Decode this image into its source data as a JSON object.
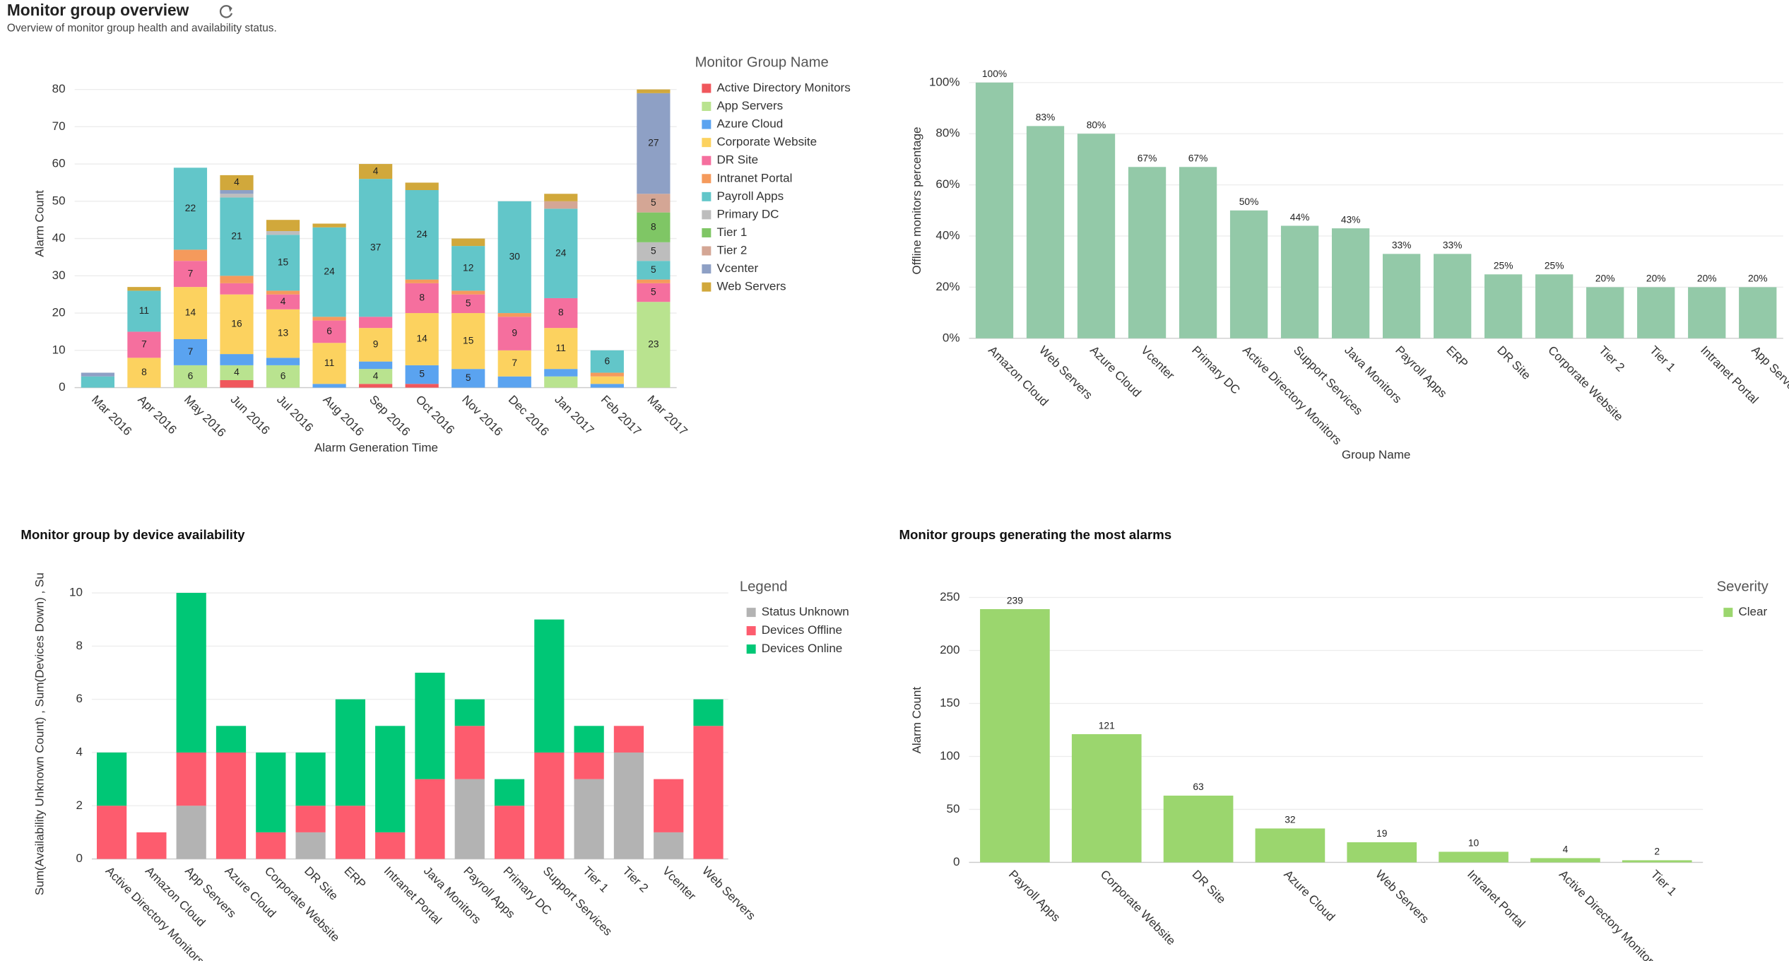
{
  "header": {
    "title": "Monitor group overview",
    "subtitle": "Overview of monitor group health and availability status."
  },
  "chart_data": [
    {
      "type": "bar",
      "stacked": true,
      "y_label": "Alarm Count",
      "x_label": "Alarm Generation Time",
      "legend_title": "Monitor Group Name",
      "categories": [
        "Mar 2016",
        "Apr 2016",
        "May 2016",
        "Jun 2016",
        "Jul 2016",
        "Aug 2016",
        "Sep 2016",
        "Oct 2016",
        "Nov 2016",
        "Dec 2016",
        "Jan 2017",
        "Feb 2017",
        "Mar 2017"
      ],
      "series": [
        {
          "name": "Active Directory Monitors",
          "color": "#f0575c",
          "values": [
            0,
            0,
            0,
            2,
            0,
            0,
            1,
            1,
            0,
            0,
            0,
            0,
            0
          ]
        },
        {
          "name": "App Servers",
          "color": "#b9e38f",
          "values": [
            0,
            0,
            6,
            4,
            6,
            0,
            4,
            0,
            0,
            0,
            3,
            0,
            23
          ]
        },
        {
          "name": "Azure Cloud",
          "color": "#5aa3f0",
          "values": [
            0,
            0,
            7,
            3,
            2,
            1,
            2,
            5,
            5,
            3,
            2,
            1,
            0
          ]
        },
        {
          "name": "Corporate Website",
          "color": "#fcd25f",
          "values": [
            0,
            8,
            14,
            16,
            13,
            11,
            9,
            14,
            15,
            7,
            11,
            2,
            0
          ]
        },
        {
          "name": "DR Site",
          "color": "#f56f9e",
          "values": [
            0,
            7,
            7,
            3,
            4,
            6,
            3,
            8,
            5,
            9,
            8,
            0,
            5
          ]
        },
        {
          "name": "Intranet Portal",
          "color": "#f59a5c",
          "values": [
            0,
            0,
            3,
            2,
            1,
            1,
            0,
            1,
            1,
            1,
            0,
            1,
            1
          ]
        },
        {
          "name": "Payroll Apps",
          "color": "#62c6c9",
          "values": [
            3,
            11,
            22,
            21,
            15,
            24,
            37,
            24,
            12,
            30,
            24,
            6,
            5
          ]
        },
        {
          "name": "Primary DC",
          "color": "#bdbdbd",
          "values": [
            0,
            0,
            0,
            1,
            1,
            0,
            0,
            0,
            0,
            0,
            0,
            0,
            5
          ]
        },
        {
          "name": "Tier 1",
          "color": "#7fc665",
          "values": [
            0,
            0,
            0,
            0,
            0,
            0,
            0,
            0,
            0,
            0,
            0,
            0,
            8
          ]
        },
        {
          "name": "Tier 2",
          "color": "#d4a695",
          "values": [
            0,
            0,
            0,
            0,
            0,
            0,
            0,
            0,
            0,
            0,
            2,
            0,
            5
          ]
        },
        {
          "name": "Vcenter",
          "color": "#8ea0c5",
          "values": [
            1,
            0,
            0,
            1,
            0,
            0,
            0,
            0,
            0,
            0,
            0,
            0,
            27
          ]
        },
        {
          "name": "Web Servers",
          "color": "#d1a83b",
          "values": [
            0,
            1,
            0,
            4,
            3,
            1,
            4,
            2,
            2,
            0,
            2,
            0,
            1
          ]
        }
      ],
      "ylim": [
        0,
        80
      ],
      "yticks": [
        0,
        10,
        20,
        30,
        40,
        50,
        60,
        70,
        80
      ],
      "grid": true
    },
    {
      "type": "bar",
      "y_label": "Offline monitors percentage",
      "x_label": "Group Name",
      "color": "#93c9a8",
      "categories": [
        "Amazon Cloud",
        "Web Servers",
        "Azure Cloud",
        "Vcenter",
        "Primary DC",
        "Active Directory Monitors",
        "Support Services",
        "Java Monitors",
        "Payroll Apps",
        "ERP",
        "DR Site",
        "Corporate Website",
        "Tier 2",
        "Tier 1",
        "Intranet Portal",
        "App Servers"
      ],
      "values": [
        100,
        83,
        80,
        67,
        67,
        50,
        44,
        43,
        33,
        33,
        25,
        25,
        20,
        20,
        20,
        20
      ],
      "value_labels": [
        "100%",
        "83%",
        "80%",
        "67%",
        "67%",
        "50%",
        "44%",
        "43%",
        "33%",
        "33%",
        "25%",
        "25%",
        "20%",
        "20%",
        "20%",
        "20%"
      ],
      "ylim": [
        0,
        100
      ],
      "yticks": [
        {
          "value": 0,
          "label": "0%"
        },
        {
          "value": 20,
          "label": "20%"
        },
        {
          "value": 40,
          "label": "40%"
        },
        {
          "value": 60,
          "label": "60%"
        },
        {
          "value": 80,
          "label": "80%"
        },
        {
          "value": 100,
          "label": "100%"
        }
      ],
      "grid": true
    },
    {
      "type": "bar",
      "stacked": true,
      "title": "Monitor group by device availability",
      "y_label": "Sum(Availability Unknown Count) , Sum(Devices Down) , Su",
      "legend_title": "Legend",
      "categories": [
        "Active Directory Monitors",
        "Amazon Cloud",
        "App Servers",
        "Azure Cloud",
        "Corporate Website",
        "DR Site",
        "ERP",
        "Intranet Portal",
        "Java Monitors",
        "Payroll Apps",
        "Primary DC",
        "Support Services",
        "Tier 1",
        "Tier 2",
        "Vcenter",
        "Web Servers"
      ],
      "series": [
        {
          "name": "Status Unknown",
          "color": "#b3b3b3",
          "values": [
            0,
            0,
            2,
            0,
            0,
            1,
            0,
            0,
            0,
            3,
            0,
            0,
            3,
            4,
            1,
            0
          ]
        },
        {
          "name": "Devices Offline",
          "color": "#fd5c6e",
          "values": [
            2,
            1,
            2,
            4,
            1,
            1,
            2,
            1,
            3,
            2,
            2,
            4,
            1,
            1,
            2,
            5
          ]
        },
        {
          "name": "Devices Online",
          "color": "#00c776",
          "values": [
            2,
            0,
            6,
            1,
            3,
            2,
            4,
            4,
            4,
            1,
            1,
            5,
            1,
            0,
            0,
            1
          ]
        }
      ],
      "ylim": [
        0,
        10
      ],
      "yticks": [
        0,
        2,
        4,
        6,
        8,
        10
      ],
      "grid": true
    },
    {
      "type": "bar",
      "title": "Monitor groups generating the most alarms",
      "y_label": "Alarm Count",
      "legend_title": "Severity",
      "categories": [
        "Payroll Apps",
        "Corporate Website",
        "DR Site",
        "Azure Cloud",
        "Web Servers",
        "Intranet Portal",
        "Active Directory Monitors",
        "Tier 1"
      ],
      "series": [
        {
          "name": "Clear",
          "color": "#9bd66e",
          "values": [
            239,
            121,
            63,
            32,
            19,
            10,
            4,
            2
          ]
        }
      ],
      "ylim": [
        0,
        250
      ],
      "yticks": [
        0,
        50,
        100,
        150,
        200,
        250
      ],
      "grid": true
    }
  ]
}
